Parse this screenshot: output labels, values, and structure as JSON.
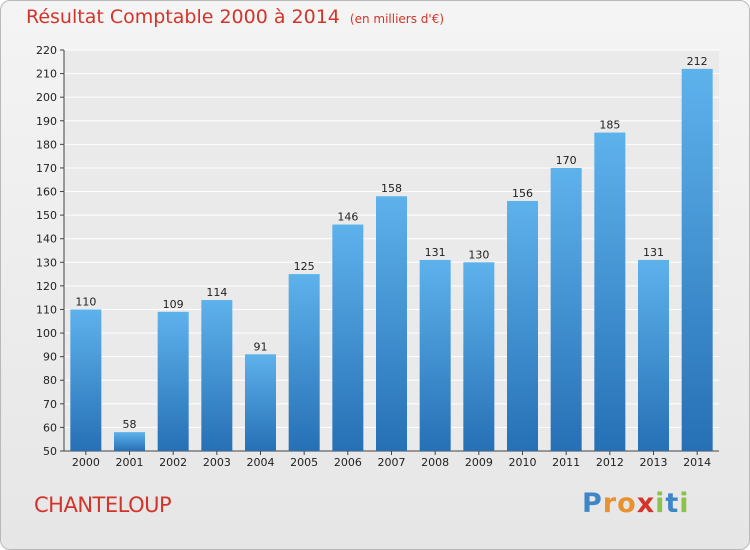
{
  "chart_data": {
    "type": "bar",
    "title": "Résultat Comptable 2000 à 2014",
    "subtitle": "(en milliers d'€)",
    "categories": [
      "2000",
      "2001",
      "2002",
      "2003",
      "2004",
      "2005",
      "2006",
      "2007",
      "2008",
      "2009",
      "2010",
      "2011",
      "2012",
      "2013",
      "2014"
    ],
    "values": [
      110,
      58,
      109,
      114,
      91,
      125,
      146,
      158,
      131,
      130,
      156,
      170,
      185,
      131,
      212
    ],
    "ylim": [
      50,
      220
    ],
    "yticks": [
      50,
      60,
      70,
      80,
      90,
      100,
      110,
      120,
      130,
      140,
      150,
      160,
      170,
      180,
      190,
      200,
      210,
      220
    ],
    "grid": true,
    "bar_color": "#3a8fd4"
  },
  "commune": "CHANTELOUP",
  "brand": {
    "letters": [
      "P",
      "r",
      "o",
      "x",
      "i",
      "t",
      "i"
    ],
    "colors": [
      "#3f86c9",
      "#e8912f",
      "#e8912f",
      "#d6342a",
      "#8cc24a",
      "#3f86c9",
      "#8cc24a"
    ]
  }
}
